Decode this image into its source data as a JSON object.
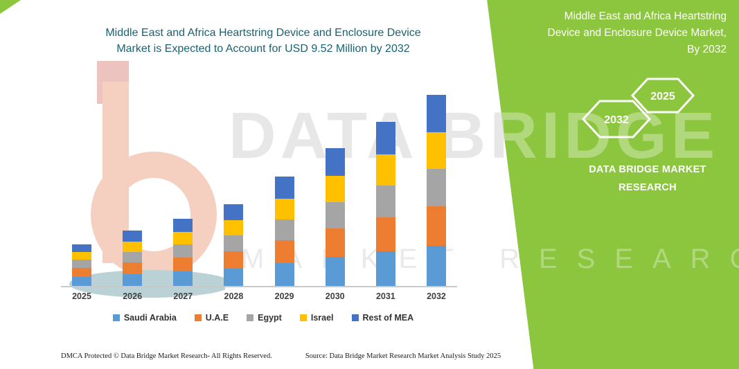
{
  "chart": {
    "title_lines": [
      "Middle East and Africa Heartstring Device and Enclosure Device",
      "Market is Expected to Account for USD 9.52 Million by 2032"
    ]
  },
  "chart_data": {
    "type": "bar",
    "stacked": true,
    "title": "Middle East and Africa Heartstring Device and Enclosure Device Market is Expected to Account for USD 9.52 Million by 2032",
    "units": "USD Million",
    "categories": [
      "2025",
      "2026",
      "2027",
      "2028",
      "2029",
      "2030",
      "2031",
      "2032"
    ],
    "series": [
      {
        "name": "Saudi Arabia",
        "color": "#5B9BD5",
        "values": [
          0.45,
          0.6,
          0.72,
          0.88,
          1.15,
          1.45,
          1.72,
          2.0
        ]
      },
      {
        "name": "U.A.E",
        "color": "#ED7D31",
        "values": [
          0.45,
          0.58,
          0.7,
          0.85,
          1.12,
          1.42,
          1.7,
          1.98
        ]
      },
      {
        "name": "Egypt",
        "color": "#A5A5A5",
        "values": [
          0.4,
          0.52,
          0.64,
          0.78,
          1.05,
          1.32,
          1.58,
          1.85
        ]
      },
      {
        "name": "Israel",
        "color": "#FFC000",
        "values": [
          0.38,
          0.5,
          0.62,
          0.76,
          1.02,
          1.3,
          1.55,
          1.82
        ]
      },
      {
        "name": "Rest of MEA",
        "color": "#4472C4",
        "values": [
          0.4,
          0.55,
          0.68,
          0.82,
          1.1,
          1.38,
          1.62,
          1.87
        ]
      }
    ],
    "totals": [
      2.08,
      2.75,
      3.36,
      4.09,
      5.44,
      6.87,
      8.17,
      9.52
    ],
    "xlabel": "",
    "ylabel": "",
    "ylim": [
      0,
      10
    ],
    "grid": false,
    "legend_position": "bottom"
  },
  "side_panel": {
    "heading_lines": [
      "Middle East and Africa Heartstring",
      "Device and Enclosure Device Market,",
      "By 2032"
    ],
    "hexagon_labels": [
      "2032",
      "2025"
    ],
    "brand_line1": "DATA BRIDGE MARKET",
    "brand_line2": "RESEARCH",
    "accent_color": "#8CC63F"
  },
  "watermark": {
    "line1": "DATA BRIDGE",
    "line2": "MARKET RESEARCH"
  },
  "footer": {
    "dmca": "DMCA Protected © Data Bridge Market Research-  All Rights Reserved.",
    "source": "Source: Data Bridge Market Research  Market Analysis Study 2025"
  }
}
